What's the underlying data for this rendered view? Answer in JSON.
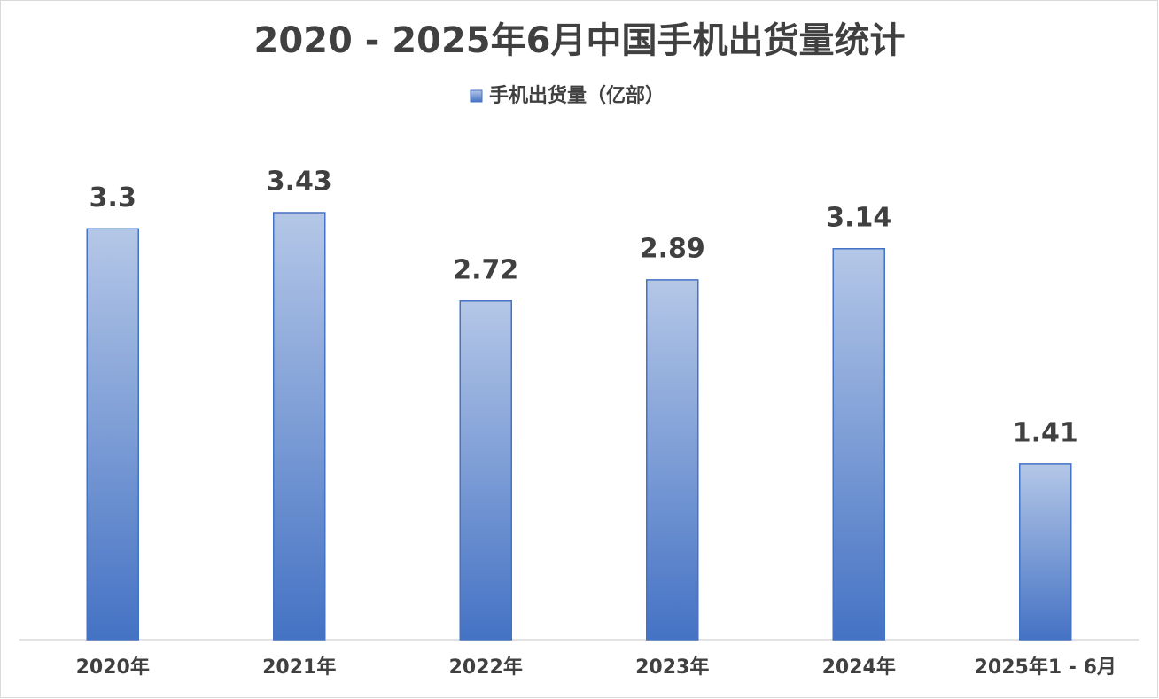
{
  "chart_data": {
    "type": "bar",
    "title": "2020 - 2025年6月中国手机出货量统计",
    "categories": [
      "2020年",
      "2021年",
      "2022年",
      "2023年",
      "2024年",
      "2025年1 - 6月"
    ],
    "series": [
      {
        "name": "手机出货量（亿部）",
        "color": "#4472c4",
        "values": [
          3.3,
          3.43,
          2.72,
          2.89,
          3.14,
          1.41
        ]
      }
    ],
    "legend": "top"
  }
}
